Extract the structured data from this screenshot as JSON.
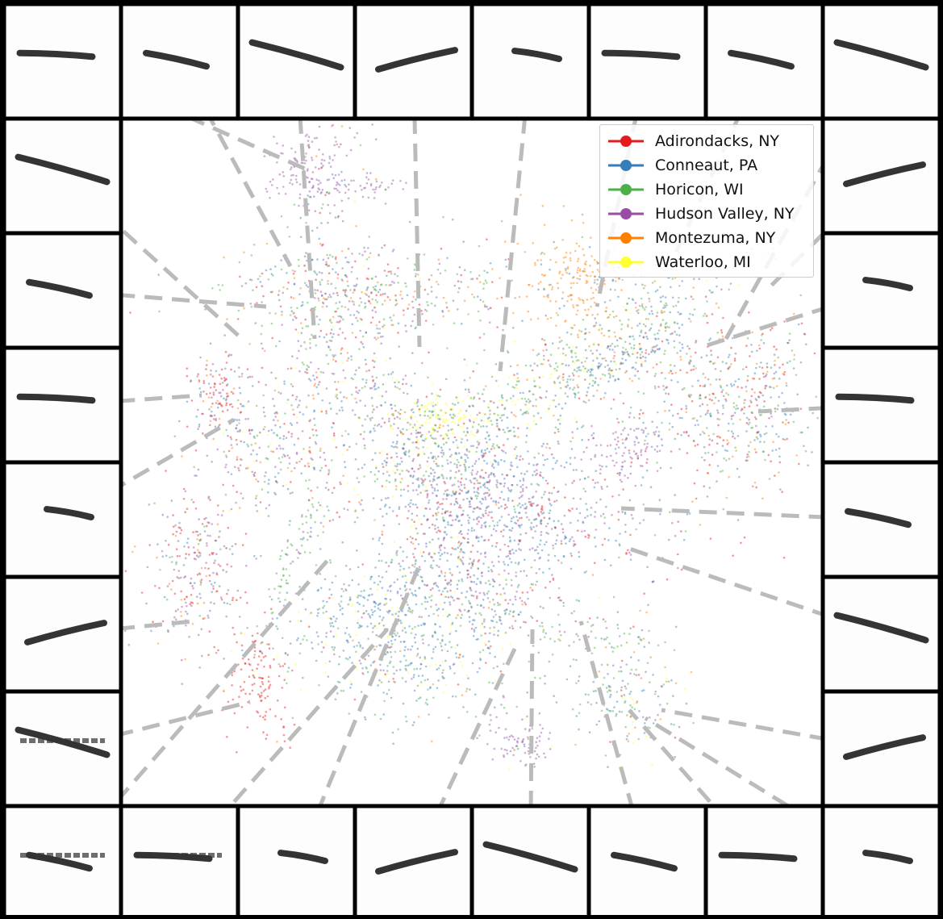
{
  "chart_data": {
    "type": "scatter",
    "title": "",
    "xlabel": "",
    "ylabel": "",
    "legend_position": "top-right",
    "grid": false,
    "series": [
      {
        "name": "Adirondacks, NY",
        "color": "#e41a1c"
      },
      {
        "name": "Conneaut, PA",
        "color": "#377eb8"
      },
      {
        "name": "Horicon, WI",
        "color": "#4daf4a"
      },
      {
        "name": "Hudson Valley, NY",
        "color": "#984ea3"
      },
      {
        "name": "Montezuma, NY",
        "color": "#ff7f00"
      },
      {
        "name": "Waterloo, MI",
        "color": "#ffff33"
      }
    ],
    "spectrogram_tiles": 28,
    "connector_color": "#bbbbbb"
  }
}
